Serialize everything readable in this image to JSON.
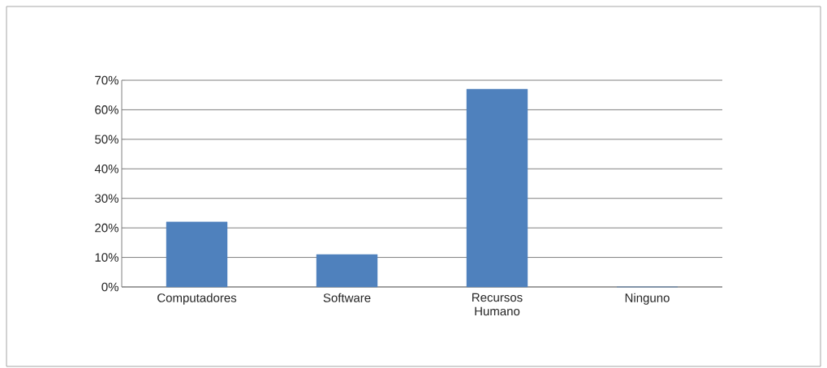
{
  "chart_data": {
    "type": "bar",
    "categories": [
      "Computadores",
      "Software",
      "Recursos Humano",
      "Ninguno"
    ],
    "values": [
      22,
      11,
      67,
      0
    ],
    "color": "#4f81bd",
    "ylim": [
      0,
      70
    ],
    "yticks": [
      {
        "value": 0,
        "label": "0%"
      },
      {
        "value": 10,
        "label": "10%"
      },
      {
        "value": 20,
        "label": "20%"
      },
      {
        "value": 30,
        "label": "30%"
      },
      {
        "value": 40,
        "label": "40%"
      },
      {
        "value": 50,
        "label": "50%"
      },
      {
        "value": 60,
        "label": "60%"
      },
      {
        "value": 70,
        "label": "70%"
      }
    ],
    "grid": "y"
  }
}
